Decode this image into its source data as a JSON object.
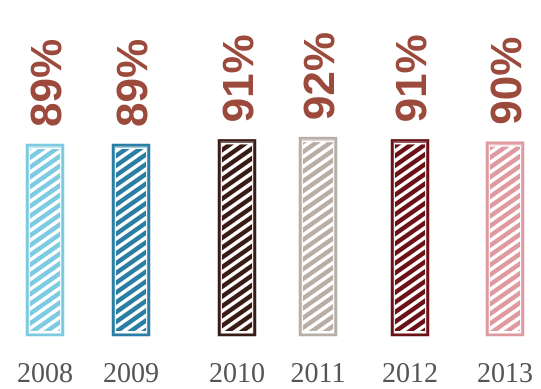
{
  "chart_data": {
    "type": "bar",
    "categories": [
      "2008",
      "2009",
      "2010",
      "2011",
      "2012",
      "2013"
    ],
    "values": [
      89,
      89,
      91,
      92,
      91,
      90
    ],
    "value_labels": [
      "89%",
      "89%",
      "91%",
      "92%",
      "91%",
      "90%"
    ],
    "value_label_color": "#9b4a3c",
    "bar_colors": [
      "#7ccbe0",
      "#2a7ea3",
      "#3a1c17",
      "#b7afa6",
      "#6b1218",
      "#df9aa0"
    ],
    "title": "",
    "xlabel": "",
    "ylabel": "",
    "ylim": [
      0,
      100
    ],
    "grid": false,
    "legend": "none"
  }
}
